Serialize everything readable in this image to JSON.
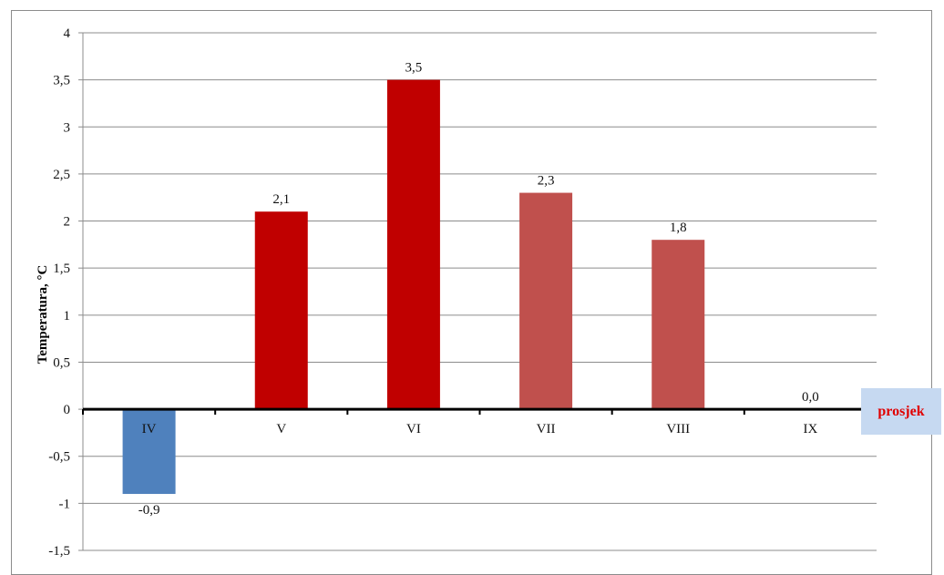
{
  "chart_data": {
    "type": "bar",
    "categories": [
      "IV",
      "V",
      "VI",
      "VII",
      "VIII",
      "IX"
    ],
    "values": [
      -0.9,
      2.1,
      3.5,
      2.3,
      1.8,
      0.0
    ],
    "data_labels": [
      "-0,9",
      "2,1",
      "3,5",
      "2,3",
      "1,8",
      "0,0"
    ],
    "bar_colors": [
      "#4f81bd",
      "#c00000",
      "#c00000",
      "#c0504d",
      "#c0504d",
      "#c0504d"
    ],
    "ylabel": "Temperatura, °C",
    "ylim": [
      -1.5,
      4
    ],
    "yticks": [
      4,
      3.5,
      3,
      2.5,
      2,
      1.5,
      1,
      0.5,
      0,
      -0.5,
      -1,
      -1.5
    ],
    "ytick_labels": [
      "4",
      "3,5",
      "3",
      "2,5",
      "2",
      "1,5",
      "1",
      "0,5",
      "0",
      "-0,5",
      "-1",
      "-1,5"
    ],
    "grid": true,
    "legend": {
      "label": "prosjek",
      "position": "right",
      "background": "#c6d9f1",
      "text_color": "#e00000"
    }
  }
}
